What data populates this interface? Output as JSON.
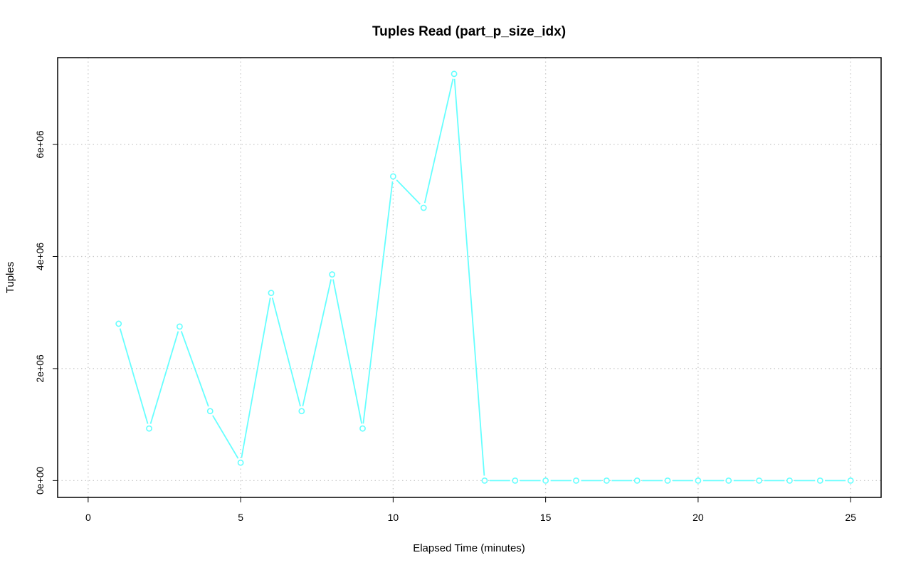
{
  "chart_data": {
    "type": "line",
    "title": "Tuples Read (part_p_size_idx)",
    "xlabel": "Elapsed Time (minutes)",
    "ylabel": "Tuples",
    "xlim": [
      -1,
      26
    ],
    "ylim": [
      -300000,
      7550000
    ],
    "x_ticks": [
      0,
      5,
      10,
      15,
      20,
      25
    ],
    "x_tick_labels": [
      "0",
      "5",
      "10",
      "15",
      "20",
      "25"
    ],
    "y_ticks": [
      0,
      2000000,
      4000000,
      6000000
    ],
    "y_tick_labels": [
      "0e+00",
      "2e+06",
      "4e+06",
      "6e+06"
    ],
    "grid": true,
    "series_color": "#66ffff",
    "series": [
      {
        "x": [
          1,
          2,
          3,
          4,
          5,
          6,
          7,
          8,
          9,
          10,
          11,
          12,
          13,
          14,
          15,
          16,
          17,
          18,
          19,
          20,
          21,
          22,
          23,
          24,
          25
        ],
        "values": [
          2800000,
          930000,
          2750000,
          1240000,
          320000,
          3350000,
          1240000,
          3680000,
          930000,
          5430000,
          4870000,
          7260000,
          0,
          0,
          0,
          0,
          0,
          0,
          0,
          0,
          0,
          0,
          0,
          0,
          0
        ]
      }
    ]
  }
}
